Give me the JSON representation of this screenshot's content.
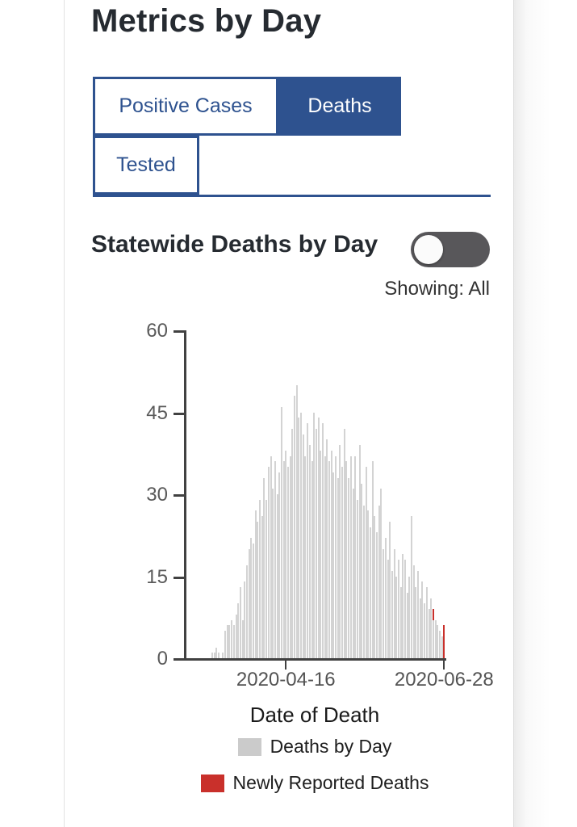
{
  "page": {
    "title": "Metrics by Day"
  },
  "tabs": [
    {
      "label": "Positive Cases",
      "selected": false
    },
    {
      "label": "Deaths",
      "selected": true
    },
    {
      "label": "Tested",
      "selected": false
    }
  ],
  "section": {
    "heading": "Statewide Deaths by Day",
    "toggle_state": "off",
    "showing_label": "Showing: All"
  },
  "colors": {
    "navy": "#2e528f",
    "bar_gray": "#d3d3d3",
    "legend_gray": "#cbcbcb",
    "red": "#c9302b",
    "axis": "#414141",
    "toggle_track": "#58575a"
  },
  "chart_data": {
    "type": "bar",
    "title": "Statewide Deaths by Day",
    "xlabel": "Date of Death",
    "ylabel": "",
    "ylim": [
      0,
      60
    ],
    "yticks": [
      0,
      15,
      30,
      45,
      60
    ],
    "xtick_labels": [
      "2020-04-16",
      "2020-06-28"
    ],
    "grid": false,
    "legend_position": "bottom",
    "legend": [
      {
        "name": "Deaths by Day",
        "color": "#d3d3d3"
      },
      {
        "name": "Newly Reported Deaths",
        "color": "#c9302b"
      }
    ],
    "series_note": "points are [date, deaths_by_day, newly_reported_deaths]; values estimated from pixels",
    "points": [
      [
        "2020-03-13",
        1,
        0
      ],
      [
        "2020-03-14",
        1,
        0
      ],
      [
        "2020-03-15",
        2,
        0
      ],
      [
        "2020-03-16",
        1,
        0
      ],
      [
        "2020-03-17",
        0,
        0
      ],
      [
        "2020-03-18",
        1,
        0
      ],
      [
        "2020-03-19",
        5,
        0
      ],
      [
        "2020-03-20",
        6,
        0
      ],
      [
        "2020-03-21",
        6,
        0
      ],
      [
        "2020-03-22",
        7,
        0
      ],
      [
        "2020-03-23",
        6,
        0
      ],
      [
        "2020-03-24",
        8,
        0
      ],
      [
        "2020-03-25",
        10,
        0
      ],
      [
        "2020-03-26",
        13,
        0
      ],
      [
        "2020-03-27",
        7,
        0
      ],
      [
        "2020-03-28",
        14,
        0
      ],
      [
        "2020-03-29",
        17,
        0
      ],
      [
        "2020-03-30",
        20,
        0
      ],
      [
        "2020-03-31",
        22,
        0
      ],
      [
        "2020-04-01",
        21,
        0
      ],
      [
        "2020-04-02",
        27,
        0
      ],
      [
        "2020-04-03",
        25,
        0
      ],
      [
        "2020-04-04",
        29,
        0
      ],
      [
        "2020-04-05",
        26,
        0
      ],
      [
        "2020-04-06",
        33,
        0
      ],
      [
        "2020-04-07",
        29,
        0
      ],
      [
        "2020-04-08",
        35,
        0
      ],
      [
        "2020-04-09",
        37,
        0
      ],
      [
        "2020-04-10",
        31,
        0
      ],
      [
        "2020-04-11",
        36,
        0
      ],
      [
        "2020-04-12",
        30,
        0
      ],
      [
        "2020-04-13",
        34,
        0
      ],
      [
        "2020-04-14",
        46,
        0
      ],
      [
        "2020-04-15",
        36,
        0
      ],
      [
        "2020-04-16",
        38,
        0
      ],
      [
        "2020-04-17",
        35,
        0
      ],
      [
        "2020-04-18",
        37,
        0
      ],
      [
        "2020-04-19",
        42,
        0
      ],
      [
        "2020-04-20",
        48,
        0
      ],
      [
        "2020-04-21",
        50,
        0
      ],
      [
        "2020-04-22",
        44,
        0
      ],
      [
        "2020-04-23",
        45,
        0
      ],
      [
        "2020-04-24",
        41,
        0
      ],
      [
        "2020-04-25",
        37,
        0
      ],
      [
        "2020-04-26",
        43,
        0
      ],
      [
        "2020-04-27",
        39,
        0
      ],
      [
        "2020-04-28",
        36,
        0
      ],
      [
        "2020-04-29",
        45,
        0
      ],
      [
        "2020-04-30",
        42,
        0
      ],
      [
        "2020-05-01",
        44,
        0
      ],
      [
        "2020-05-02",
        38,
        0
      ],
      [
        "2020-05-03",
        43,
        0
      ],
      [
        "2020-05-04",
        37,
        0
      ],
      [
        "2020-05-05",
        40,
        0
      ],
      [
        "2020-05-06",
        36,
        0
      ],
      [
        "2020-05-07",
        38,
        0
      ],
      [
        "2020-05-08",
        34,
        0
      ],
      [
        "2020-05-09",
        37,
        0
      ],
      [
        "2020-05-10",
        33,
        0
      ],
      [
        "2020-05-11",
        39,
        0
      ],
      [
        "2020-05-12",
        35,
        0
      ],
      [
        "2020-05-13",
        42,
        0
      ],
      [
        "2020-05-14",
        36,
        0
      ],
      [
        "2020-05-15",
        33,
        0
      ],
      [
        "2020-05-16",
        37,
        0
      ],
      [
        "2020-05-17",
        31,
        0
      ],
      [
        "2020-05-18",
        37,
        0
      ],
      [
        "2020-05-19",
        29,
        0
      ],
      [
        "2020-05-20",
        39,
        0
      ],
      [
        "2020-05-21",
        32,
        0
      ],
      [
        "2020-05-22",
        28,
        0
      ],
      [
        "2020-05-23",
        35,
        0
      ],
      [
        "2020-05-24",
        27,
        0
      ],
      [
        "2020-05-25",
        24,
        0
      ],
      [
        "2020-05-26",
        36,
        0
      ],
      [
        "2020-05-27",
        26,
        0
      ],
      [
        "2020-05-28",
        23,
        0
      ],
      [
        "2020-05-29",
        28,
        0
      ],
      [
        "2020-05-30",
        31,
        0
      ],
      [
        "2020-05-31",
        20,
        0
      ],
      [
        "2020-06-01",
        22,
        0
      ],
      [
        "2020-06-02",
        18,
        0
      ],
      [
        "2020-06-03",
        25,
        0
      ],
      [
        "2020-06-04",
        16,
        0
      ],
      [
        "2020-06-05",
        20,
        0
      ],
      [
        "2020-06-06",
        15,
        0
      ],
      [
        "2020-06-07",
        18,
        0
      ],
      [
        "2020-06-08",
        13,
        0
      ],
      [
        "2020-06-09",
        19,
        0
      ],
      [
        "2020-06-10",
        18,
        0
      ],
      [
        "2020-06-11",
        12,
        0
      ],
      [
        "2020-06-12",
        15,
        0
      ],
      [
        "2020-06-13",
        26,
        0
      ],
      [
        "2020-06-14",
        17,
        0
      ],
      [
        "2020-06-15",
        13,
        0
      ],
      [
        "2020-06-16",
        16,
        0
      ],
      [
        "2020-06-17",
        11,
        0
      ],
      [
        "2020-06-18",
        14,
        0
      ],
      [
        "2020-06-19",
        10,
        0
      ],
      [
        "2020-06-20",
        13,
        0
      ],
      [
        "2020-06-21",
        9,
        0
      ],
      [
        "2020-06-22",
        11,
        0
      ],
      [
        "2020-06-23",
        7,
        2
      ],
      [
        "2020-06-24",
        7,
        0
      ],
      [
        "2020-06-25",
        6,
        0
      ],
      [
        "2020-06-26",
        5,
        0
      ],
      [
        "2020-06-27",
        4,
        0
      ],
      [
        "2020-06-28",
        0,
        6
      ]
    ]
  }
}
